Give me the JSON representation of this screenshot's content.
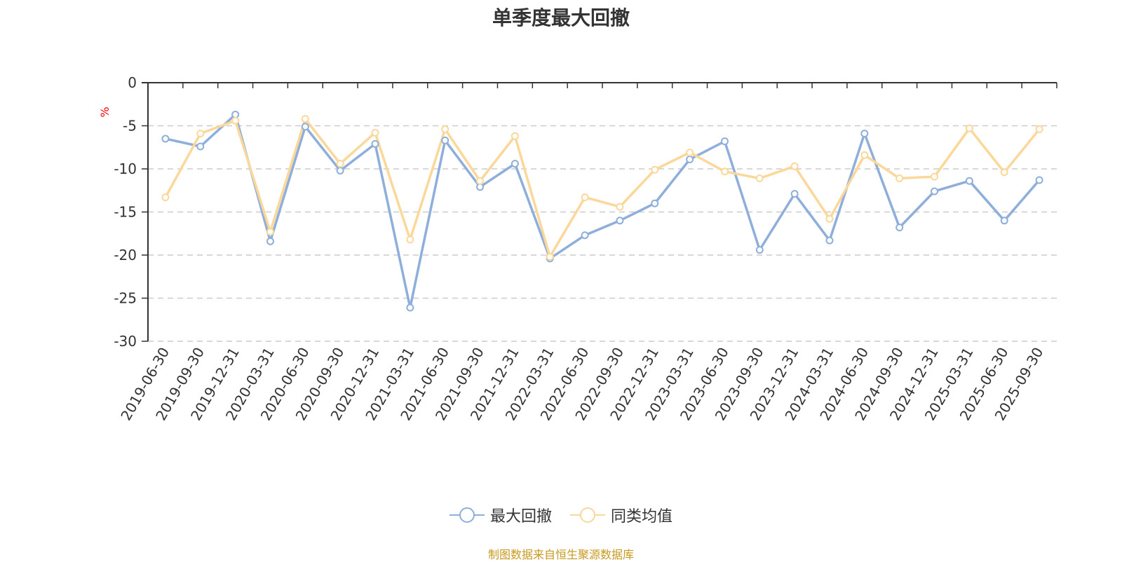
{
  "title": "单季度最大回撤",
  "source_text": "制图数据来自恒生聚源数据库",
  "colors": {
    "series1": "#8eaedb",
    "series2": "#fbd89a",
    "unit": "#ff0000",
    "source": "#c8991f",
    "grid": "#cccccc",
    "axis": "#333333",
    "text": "#333333"
  },
  "chart_data": {
    "type": "line",
    "ylabel": "%",
    "ylim": [
      -30,
      0
    ],
    "yticks": [
      0,
      -5,
      -10,
      -15,
      -20,
      -25,
      -30
    ],
    "grid": true,
    "legend_position": "bottom",
    "categories": [
      "2019-06-30",
      "2019-09-30",
      "2019-12-31",
      "2020-03-31",
      "2020-06-30",
      "2020-09-30",
      "2020-12-31",
      "2021-03-31",
      "2021-06-30",
      "2021-09-30",
      "2021-12-31",
      "2022-03-31",
      "2022-06-30",
      "2022-09-30",
      "2022-12-31",
      "2023-03-31",
      "2023-06-30",
      "2023-09-30",
      "2023-12-31",
      "2024-03-31",
      "2024-06-30",
      "2024-09-30",
      "2024-12-31",
      "2025-03-31",
      "2025-06-30",
      "2025-09-30"
    ],
    "series": [
      {
        "name": "最大回撤",
        "values": [
          -6.5,
          -7.4,
          -3.7,
          -18.4,
          -5.1,
          -10.2,
          -7.1,
          -26.1,
          -6.7,
          -12.1,
          -9.4,
          -20.4,
          -17.7,
          -16.0,
          -14.0,
          -8.9,
          -6.8,
          -19.4,
          -12.9,
          -18.3,
          -5.9,
          -16.8,
          -12.6,
          -11.4,
          -16.0,
          -11.3
        ]
      },
      {
        "name": "同类均值",
        "values": [
          -13.3,
          -5.9,
          -4.4,
          -17.3,
          -4.2,
          -9.4,
          -5.8,
          -18.2,
          -5.4,
          -11.4,
          -6.2,
          -20.2,
          -13.3,
          -14.4,
          -10.1,
          -8.1,
          -10.3,
          -11.1,
          -9.7,
          -15.8,
          -8.4,
          -11.1,
          -10.9,
          -5.3,
          -10.4,
          -5.4
        ]
      }
    ]
  }
}
